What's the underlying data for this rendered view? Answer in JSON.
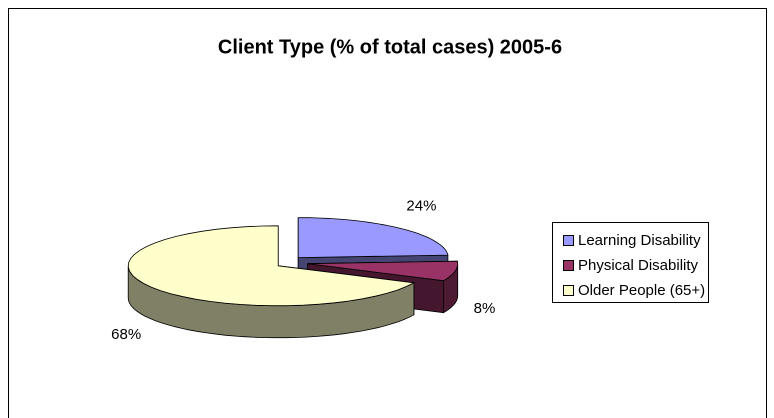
{
  "chart_data": {
    "type": "pie3d",
    "title": "Client Type (% of total cases) 2005-6",
    "categories": [
      "Learning Disability",
      "Physical Disability",
      "Older People (65+)"
    ],
    "values": [
      24,
      8,
      68
    ],
    "value_labels": [
      "24%",
      "8%",
      "68%"
    ],
    "colors": [
      "#9999ff",
      "#993366",
      "#ffffcc"
    ],
    "legend": "right"
  }
}
